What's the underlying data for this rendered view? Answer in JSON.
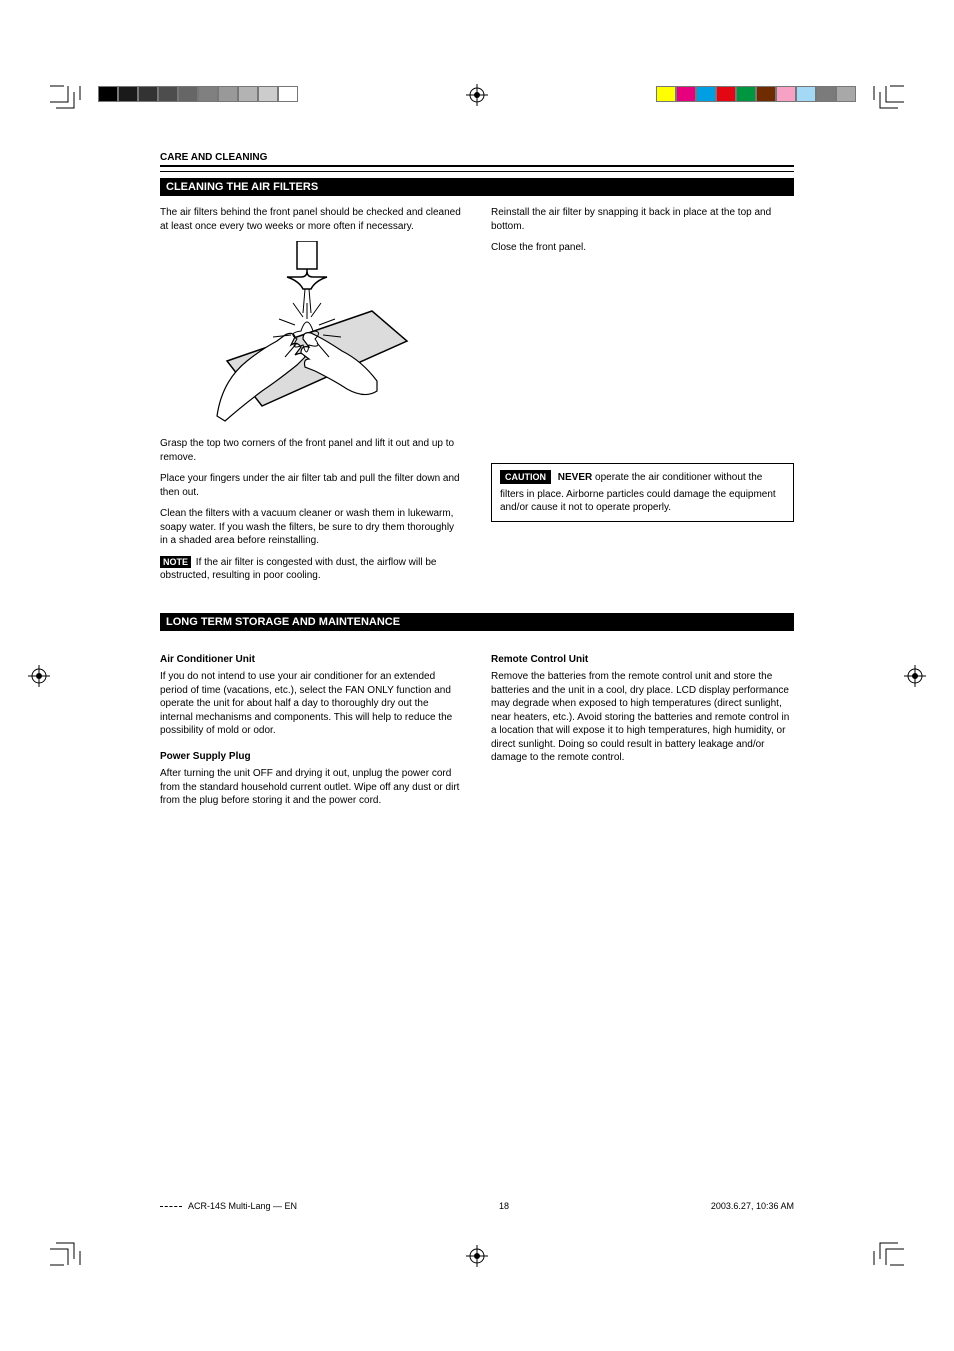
{
  "category_label": "CARE AND CLEANING",
  "section1_title": "CLEANING THE AIR FILTERS",
  "cleaning": {
    "intro": "The air filters behind the front panel should be checked and cleaned at least once every two weeks or more often if necessary.",
    "step1": "Grasp the top two corners of the front panel and lift it out and up to remove.",
    "step2": "Place your fingers under the air filter tab and pull the filter down and then out.",
    "step3": "Clean the filters with a vacuum cleaner or wash them in lukewarm, soapy water. If you wash the filters, be sure to dry them thoroughly in a shaded area before reinstalling.",
    "step4": "Reinstall the air filter by snapping it back in place at the top and bottom.",
    "step5": "Close the front panel.",
    "note": "If the air filter is congested with dust, the airflow will be obstructed, resulting in poor cooling."
  },
  "caution_box": {
    "label": "CAUTION",
    "bold_lead": "NEVER",
    "text": " operate the air conditioner without the filters in place. Airborne particles could damage the equipment and/or cause it not to operate properly."
  },
  "note_label": "NOTE",
  "section2_title": "LONG TERM STORAGE AND MAINTENANCE",
  "maintenance": {
    "sub1": "Air Conditioner Unit",
    "para1": "If you do not intend to use your air conditioner for an extended period of time (vacations, etc.), select the FAN ONLY function and operate the unit for about half a day to thoroughly dry out the internal mechanisms and components. This will help to reduce the possibility of mold or odor.",
    "sub2": "Power Supply Plug",
    "para2": "After turning the unit OFF and drying it out, unplug the power cord from the standard household current outlet. Wipe off any dust or dirt from the plug before storing it and the power cord.",
    "sub3": "Remote Control Unit",
    "para3": "Remove the batteries from the remote control unit and store the batteries and the unit in a cool, dry place. LCD display performance may degrade when exposed to high temperatures (direct sunlight, near heaters, etc.). Avoid storing the batteries and remote control in a location that will expose it to high temperatures, high humidity, or direct sunlight. Doing so could result in battery leakage and/or damage to the remote control."
  },
  "footer": {
    "left_text": "ACR-14S Multi-Lang — EN",
    "page_num": "18",
    "timestamp": "2003.6.27, 10:36 AM"
  },
  "colors": {
    "gray_bar": [
      "#000000",
      "#1a1a1a",
      "#333333",
      "#4d4d4d",
      "#666666",
      "#808080",
      "#999999",
      "#b3b3b3",
      "#cccccc",
      "#ffffff"
    ],
    "color_bar": [
      "#ffff00",
      "#e6007e",
      "#009fe3",
      "#e30613",
      "#009640",
      "#6f2c00",
      "#f7a1c4",
      "#a3d9f5",
      "#7b7b7b",
      "#a8a8a8"
    ]
  }
}
